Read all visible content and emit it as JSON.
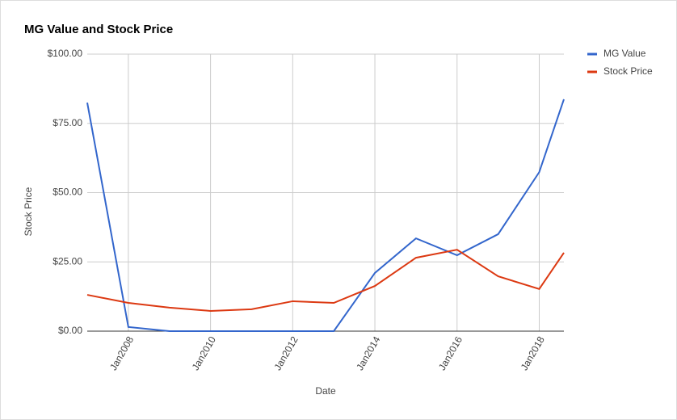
{
  "chart_data": {
    "type": "line",
    "title": "MG Value and Stock Price",
    "x_label": "Date",
    "y_label": "Stock Price",
    "x": [
      2007,
      2008,
      2009,
      2010,
      2011,
      2012,
      2013,
      2014,
      2015,
      2016,
      2017,
      2018,
      2018.6
    ],
    "xlim": [
      2007,
      2018.6
    ],
    "xticks": [
      {
        "value": 2008,
        "label": "Jan2008"
      },
      {
        "value": 2010,
        "label": "Jan2010"
      },
      {
        "value": 2012,
        "label": "Jan2012"
      },
      {
        "value": 2014,
        "label": "Jan2014"
      },
      {
        "value": 2016,
        "label": "Jan2016"
      },
      {
        "value": 2018,
        "label": "Jan2018"
      }
    ],
    "ylim": [
      0,
      100
    ],
    "yticks": [
      {
        "value": 0,
        "label": "$0.00"
      },
      {
        "value": 25,
        "label": "$25.00"
      },
      {
        "value": 50,
        "label": "$50.00"
      },
      {
        "value": 75,
        "label": "$75.00"
      },
      {
        "value": 100,
        "label": "$100.00"
      }
    ],
    "grid": true,
    "legend": "right",
    "series": [
      {
        "name": "MG Value",
        "color": "#3366cc",
        "values": [
          82.5,
          1.5,
          0,
          0,
          0,
          0,
          0,
          21,
          33.5,
          27.4,
          35,
          57.4,
          83.7
        ]
      },
      {
        "name": "Stock Price",
        "color": "#dc3912",
        "values": [
          13.1,
          10.2,
          8.5,
          7.3,
          7.9,
          10.8,
          10.2,
          16.3,
          26.5,
          29.4,
          19.8,
          15.2,
          28.3
        ]
      }
    ]
  }
}
